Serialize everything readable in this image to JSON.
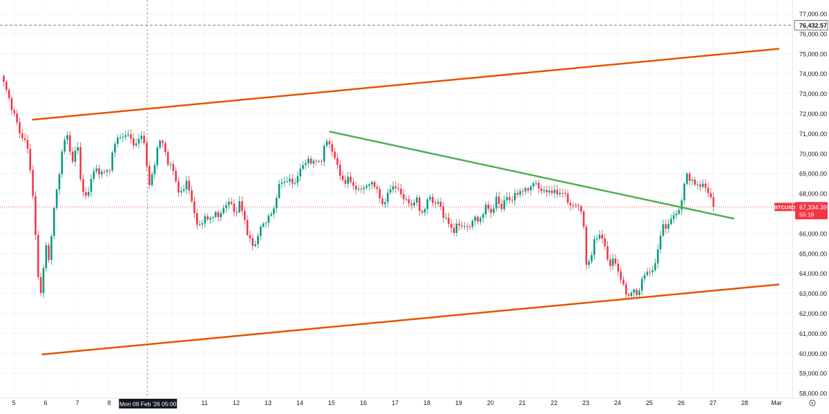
{
  "chart_data": {
    "type": "candlestick",
    "symbol": "BTCUSD",
    "last_price": 67334.39,
    "last_price_label": "67,334.39",
    "countdown_label": "55:19",
    "high_marker": 76432.57,
    "high_marker_label": "76,432.57",
    "ylim": [
      57800,
      77500
    ],
    "y_ticks": [
      {
        "value": 58000,
        "label": "58,000.00"
      },
      {
        "value": 59000,
        "label": "59,000.00"
      },
      {
        "value": 60000,
        "label": "60,000.00"
      },
      {
        "value": 61000,
        "label": "61,000.00"
      },
      {
        "value": 62000,
        "label": "62,000.00"
      },
      {
        "value": 63000,
        "label": "63,000.00"
      },
      {
        "value": 64000,
        "label": "64,000.00"
      },
      {
        "value": 65000,
        "label": "65,000.00"
      },
      {
        "value": 66000,
        "label": "66,000.00"
      },
      {
        "value": 67000,
        "label": "67,000.00"
      },
      {
        "value": 68000,
        "label": "68,000.00"
      },
      {
        "value": 69000,
        "label": "69,000.00"
      },
      {
        "value": 70000,
        "label": "70,000.00"
      },
      {
        "value": 71000,
        "label": "71,000.00"
      },
      {
        "value": 72000,
        "label": "72,000.00"
      },
      {
        "value": 73000,
        "label": "73,000.00"
      },
      {
        "value": 74000,
        "label": "74,000.00"
      },
      {
        "value": 75000,
        "label": "75,000.00"
      },
      {
        "value": 76000,
        "label": "76,000.00"
      },
      {
        "value": 77000,
        "label": "77,000.00"
      }
    ],
    "x_ticks": [
      {
        "day": 5,
        "label": "5"
      },
      {
        "day": 6,
        "label": "6"
      },
      {
        "day": 7,
        "label": "7"
      },
      {
        "day": 8,
        "label": "8"
      },
      {
        "day": 10,
        "label": ""
      },
      {
        "day": 11,
        "label": "11"
      },
      {
        "day": 12,
        "label": "12"
      },
      {
        "day": 13,
        "label": "13"
      },
      {
        "day": 14,
        "label": "14"
      },
      {
        "day": 15,
        "label": "15"
      },
      {
        "day": 16,
        "label": "16"
      },
      {
        "day": 17,
        "label": "17"
      },
      {
        "day": 18,
        "label": "18"
      },
      {
        "day": 19,
        "label": "19"
      },
      {
        "day": 20,
        "label": "20"
      },
      {
        "day": 21,
        "label": "21"
      },
      {
        "day": 22,
        "label": "22"
      },
      {
        "day": 23,
        "label": "23"
      },
      {
        "day": 24,
        "label": "24"
      },
      {
        "day": 25,
        "label": "25"
      },
      {
        "day": 26,
        "label": "26"
      },
      {
        "day": 27,
        "label": "27"
      },
      {
        "day": 28,
        "label": "28"
      },
      {
        "day": 29,
        "label": "Mar"
      }
    ],
    "crosshair": {
      "day": 9.2,
      "label": "Mon 09 Feb '26   05:00"
    },
    "xlim": [
      4.6,
      29.4
    ],
    "colors": {
      "up": "#089981",
      "down": "#f23645",
      "channel": "#e65100",
      "trend": "#4caf50"
    },
    "price_path": [
      [
        4.6,
        73900
      ],
      [
        4.8,
        73000
      ],
      [
        5.0,
        72000
      ],
      [
        5.2,
        71000
      ],
      [
        5.4,
        70500
      ],
      [
        5.55,
        69000
      ],
      [
        5.7,
        65500
      ],
      [
        5.8,
        62900
      ],
      [
        5.9,
        63500
      ],
      [
        6.0,
        65500
      ],
      [
        6.1,
        64700
      ],
      [
        6.25,
        67000
      ],
      [
        6.4,
        68700
      ],
      [
        6.55,
        70500
      ],
      [
        6.7,
        70900
      ],
      [
        6.85,
        69500
      ],
      [
        7.0,
        70600
      ],
      [
        7.15,
        68000
      ],
      [
        7.3,
        67800
      ],
      [
        7.45,
        68900
      ],
      [
        7.6,
        69200
      ],
      [
        7.8,
        69000
      ],
      [
        8.0,
        69200
      ],
      [
        8.15,
        70300
      ],
      [
        8.3,
        71000
      ],
      [
        8.45,
        70700
      ],
      [
        8.6,
        71100
      ],
      [
        8.8,
        70200
      ],
      [
        8.95,
        71000
      ],
      [
        9.1,
        70500
      ],
      [
        9.25,
        68500
      ],
      [
        9.4,
        69000
      ],
      [
        9.55,
        70800
      ],
      [
        9.7,
        70400
      ],
      [
        9.85,
        69600
      ],
      [
        10.0,
        69200
      ],
      [
        10.15,
        68300
      ],
      [
        10.3,
        67900
      ],
      [
        10.45,
        68800
      ],
      [
        10.6,
        67500
      ],
      [
        10.75,
        66600
      ],
      [
        10.9,
        66300
      ],
      [
        11.05,
        67000
      ],
      [
        11.2,
        66600
      ],
      [
        11.35,
        67100
      ],
      [
        11.5,
        66800
      ],
      [
        11.65,
        67500
      ],
      [
        11.8,
        67600
      ],
      [
        11.95,
        67000
      ],
      [
        12.1,
        67500
      ],
      [
        12.25,
        66800
      ],
      [
        12.4,
        65700
      ],
      [
        12.55,
        65300
      ],
      [
        12.7,
        66000
      ],
      [
        12.85,
        66500
      ],
      [
        13.0,
        66800
      ],
      [
        13.15,
        67000
      ],
      [
        13.3,
        68200
      ],
      [
        13.45,
        68600
      ],
      [
        13.6,
        68700
      ],
      [
        13.75,
        68500
      ],
      [
        13.9,
        68700
      ],
      [
        14.05,
        69300
      ],
      [
        14.2,
        69700
      ],
      [
        14.35,
        69500
      ],
      [
        14.5,
        69800
      ],
      [
        14.65,
        69300
      ],
      [
        14.8,
        70800
      ],
      [
        14.95,
        70300
      ],
      [
        15.1,
        69900
      ],
      [
        15.25,
        68900
      ],
      [
        15.4,
        68600
      ],
      [
        15.55,
        68700
      ],
      [
        15.7,
        68400
      ],
      [
        15.85,
        68100
      ],
      [
        16.0,
        68400
      ],
      [
        16.15,
        68300
      ],
      [
        16.3,
        68700
      ],
      [
        16.45,
        68000
      ],
      [
        16.6,
        67500
      ],
      [
        16.75,
        67800
      ],
      [
        16.9,
        68500
      ],
      [
        17.05,
        68200
      ],
      [
        17.2,
        68000
      ],
      [
        17.35,
        67600
      ],
      [
        17.5,
        67400
      ],
      [
        17.65,
        67800
      ],
      [
        17.8,
        67000
      ],
      [
        17.95,
        67300
      ],
      [
        18.1,
        67900
      ],
      [
        18.25,
        67400
      ],
      [
        18.4,
        67600
      ],
      [
        18.55,
        66700
      ],
      [
        18.7,
        66500
      ],
      [
        18.85,
        66100
      ],
      [
        19.0,
        66500
      ],
      [
        19.15,
        66400
      ],
      [
        19.3,
        66200
      ],
      [
        19.45,
        66800
      ],
      [
        19.6,
        66600
      ],
      [
        19.75,
        67000
      ],
      [
        19.9,
        67400
      ],
      [
        20.05,
        67000
      ],
      [
        20.2,
        67800
      ],
      [
        20.35,
        67300
      ],
      [
        20.5,
        67800
      ],
      [
        20.65,
        67700
      ],
      [
        20.8,
        67900
      ],
      [
        20.95,
        68200
      ],
      [
        21.1,
        68100
      ],
      [
        21.25,
        68400
      ],
      [
        21.4,
        68500
      ],
      [
        21.55,
        68300
      ],
      [
        21.7,
        68000
      ],
      [
        21.85,
        68200
      ],
      [
        22.0,
        68000
      ],
      [
        22.15,
        68100
      ],
      [
        22.3,
        68000
      ],
      [
        22.45,
        67600
      ],
      [
        22.6,
        67300
      ],
      [
        22.75,
        67500
      ],
      [
        22.9,
        67000
      ],
      [
        23.0,
        64500
      ],
      [
        23.15,
        64700
      ],
      [
        23.3,
        65800
      ],
      [
        23.45,
        66000
      ],
      [
        23.6,
        65300
      ],
      [
        23.75,
        64400
      ],
      [
        23.9,
        64700
      ],
      [
        24.05,
        64000
      ],
      [
        24.2,
        63200
      ],
      [
        24.35,
        62900
      ],
      [
        24.5,
        63100
      ],
      [
        24.65,
        63000
      ],
      [
        24.8,
        63800
      ],
      [
        24.95,
        64200
      ],
      [
        25.1,
        64000
      ],
      [
        25.25,
        65100
      ],
      [
        25.4,
        66300
      ],
      [
        25.55,
        66400
      ],
      [
        25.7,
        66700
      ],
      [
        25.85,
        67100
      ],
      [
        26.0,
        67300
      ],
      [
        26.15,
        69200
      ],
      [
        26.3,
        68500
      ],
      [
        26.45,
        68600
      ],
      [
        26.6,
        68300
      ],
      [
        26.75,
        68500
      ],
      [
        26.9,
        67800
      ],
      [
        27.05,
        67334
      ]
    ],
    "lines": [
      {
        "name": "upper-channel",
        "color": "#e65100",
        "from": [
          5.6,
          71700
        ],
        "to": [
          29.4,
          75300
        ]
      },
      {
        "name": "lower-channel",
        "color": "#e65100",
        "from": [
          5.9,
          59950
        ],
        "to": [
          29.4,
          63500
        ]
      },
      {
        "name": "descending-trendline",
        "color": "#4caf50",
        "from": [
          14.95,
          71100
        ],
        "to": [
          27.65,
          66750
        ]
      }
    ]
  }
}
